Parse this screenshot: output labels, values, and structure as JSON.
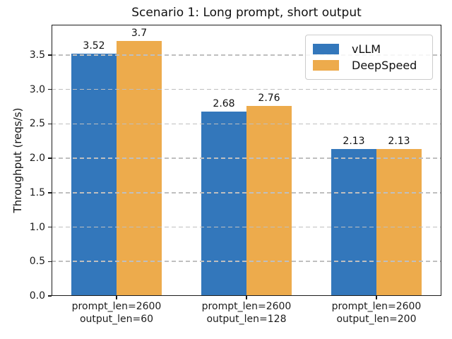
{
  "chart_data": {
    "type": "bar",
    "title": "Scenario 1: Long prompt, short output",
    "xlabel": "",
    "ylabel": "Throughput (reqs/s)",
    "categories": [
      [
        "prompt_len=2600",
        "output_len=60"
      ],
      [
        "prompt_len=2600",
        "output_len=128"
      ],
      [
        "prompt_len=2600",
        "output_len=200"
      ]
    ],
    "series": [
      {
        "name": "vLLM",
        "color": "#3377bb",
        "values": [
          3.52,
          2.68,
          2.13
        ]
      },
      {
        "name": "DeepSpeed",
        "color": "#edab4c",
        "values": [
          3.7,
          2.76,
          2.13
        ]
      }
    ],
    "bar_value_labels": [
      [
        "3.52",
        "2.68",
        "2.13"
      ],
      [
        "3.7",
        "2.76",
        "2.13"
      ]
    ],
    "ylim": [
      0,
      3.94
    ],
    "yticks": [
      0.0,
      0.5,
      1.0,
      1.5,
      2.0,
      2.5,
      3.0,
      3.5
    ],
    "ytick_labels": [
      "0.0",
      "0.5",
      "1.0",
      "1.5",
      "2.0",
      "2.5",
      "3.0",
      "3.5"
    ],
    "grid": "horizontal-dashed",
    "grid_over_bars": true,
    "legend_position": "upper-right",
    "legend_entries": [
      "vLLM",
      "DeepSpeed"
    ]
  }
}
